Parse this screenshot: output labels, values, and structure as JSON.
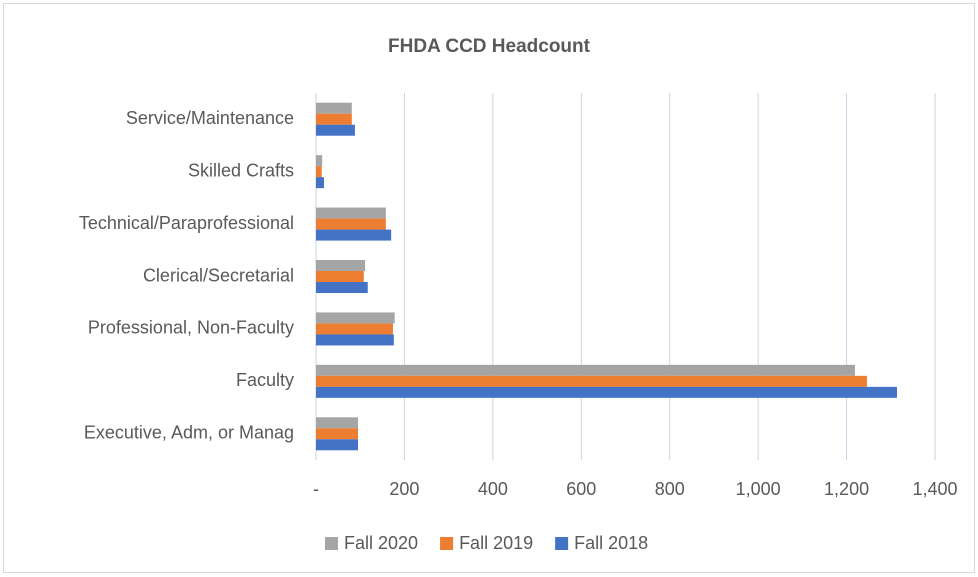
{
  "chart_data": {
    "type": "hbar",
    "title": "FHDA CCD Headcount",
    "categories": [
      "Executive, Adm, or Manag",
      "Faculty",
      "Professional, Non-Faculty",
      "Clerical/Secretarial",
      "Technical/Paraprofessional",
      "Skilled Crafts",
      "Service/Maintenance"
    ],
    "series": [
      {
        "name": "Fall 2020",
        "color": "#a5a5a5",
        "values": [
          95,
          1219,
          178,
          111,
          158,
          14,
          81
        ]
      },
      {
        "name": "Fall 2019",
        "color": "#ed7d31",
        "values": [
          95,
          1246,
          174,
          108,
          158,
          13,
          81
        ]
      },
      {
        "name": "Fall 2018",
        "color": "#4472c4",
        "values": [
          95,
          1314,
          176,
          117,
          170,
          18,
          88
        ]
      }
    ],
    "xlim": [
      0,
      1400
    ],
    "xticks": [
      {
        "value": 0,
        "label": "-"
      },
      200,
      400,
      600,
      800,
      {
        "value": 1000,
        "label": "1,000"
      },
      {
        "value": 1200,
        "label": "1,200"
      },
      {
        "value": 1400,
        "label": "1,400"
      }
    ],
    "grid": true,
    "legend": "bottom"
  }
}
